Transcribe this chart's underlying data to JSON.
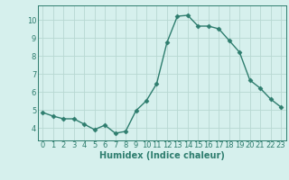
{
  "x": [
    0,
    1,
    2,
    3,
    4,
    5,
    6,
    7,
    8,
    9,
    10,
    11,
    12,
    13,
    14,
    15,
    16,
    17,
    18,
    19,
    20,
    21,
    22,
    23
  ],
  "y": [
    4.85,
    4.65,
    4.5,
    4.5,
    4.2,
    3.9,
    4.15,
    3.7,
    3.8,
    4.95,
    5.5,
    6.45,
    8.75,
    10.2,
    10.25,
    9.65,
    9.65,
    9.5,
    8.85,
    8.2,
    6.65,
    6.2,
    5.6,
    5.15
  ],
  "line_color": "#2e7d6e",
  "marker": "D",
  "marker_size": 2.5,
  "linewidth": 1.0,
  "bg_color": "#d6f0ed",
  "grid_color": "#b8d8d2",
  "xlabel": "Humidex (Indice chaleur)",
  "xlabel_fontsize": 7,
  "tick_fontsize": 6,
  "ylim": [
    3.3,
    10.8
  ],
  "yticks": [
    4,
    5,
    6,
    7,
    8,
    9,
    10
  ],
  "xlim": [
    -0.5,
    23.5
  ],
  "xticks": [
    0,
    1,
    2,
    3,
    4,
    5,
    6,
    7,
    8,
    9,
    10,
    11,
    12,
    13,
    14,
    15,
    16,
    17,
    18,
    19,
    20,
    21,
    22,
    23
  ]
}
